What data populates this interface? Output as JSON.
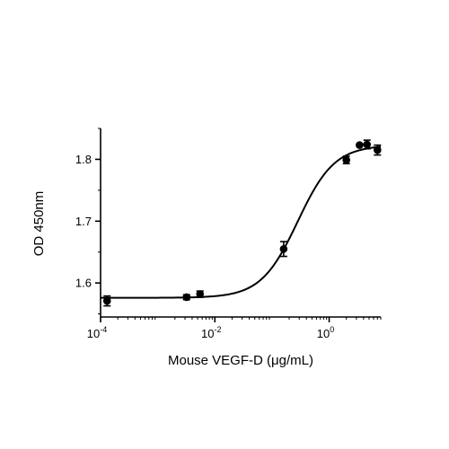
{
  "chart_data": {
    "type": "scatter",
    "xlabel": "Mouse VEGF-D (μg/mL)",
    "ylabel": "OD 450nm",
    "x_scale": "log10",
    "xlim": [
      0.0001,
      8
    ],
    "ylim": [
      1.545,
      1.85
    ],
    "x_ticks": [
      {
        "value": 0.0001,
        "base": "10",
        "exp": "-4"
      },
      {
        "value": 0.01,
        "base": "10",
        "exp": "-2"
      },
      {
        "value": 1,
        "base": "10",
        "exp": "0"
      }
    ],
    "y_ticks": [
      {
        "value": 1.6,
        "label": "1.6"
      },
      {
        "value": 1.7,
        "label": "1.7"
      },
      {
        "value": 1.8,
        "label": "1.8"
      }
    ],
    "grid": false,
    "points": [
      {
        "x": 0.00013,
        "y": 1.571,
        "err": 0.008
      },
      {
        "x": 0.0032,
        "y": 1.577,
        "err": 0.004
      },
      {
        "x": 0.0055,
        "y": 1.582,
        "err": 0.005
      },
      {
        "x": 0.16,
        "y": 1.655,
        "err": 0.012
      },
      {
        "x": 2.0,
        "y": 1.799,
        "err": 0.006
      },
      {
        "x": 3.4,
        "y": 1.823,
        "err": 0
      },
      {
        "x": 4.6,
        "y": 1.824,
        "err": 0.007
      },
      {
        "x": 7.0,
        "y": 1.815,
        "err": 0.008
      }
    ],
    "fit": {
      "model": "4PL",
      "bottom": 1.576,
      "top": 1.823,
      "log_ec50": -0.55,
      "hill": 1.35
    },
    "colors": {
      "marks": "#000000",
      "background": "#ffffff"
    }
  }
}
